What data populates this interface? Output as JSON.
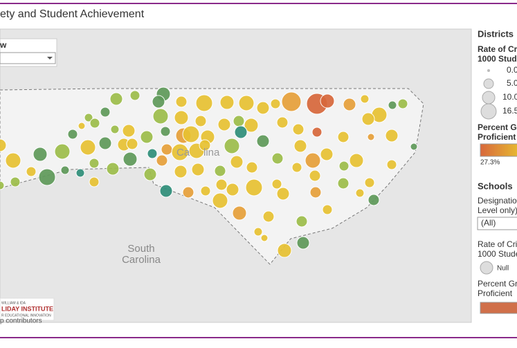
{
  "header": {
    "title": "ety and Student Achievement"
  },
  "filter": {
    "label": "w"
  },
  "map_labels": {
    "nc_left": "Ca",
    "nc_right": "lina",
    "sc_1": "South",
    "sc_2": "Carolina"
  },
  "logo": {
    "line1": "WILLIAM & IDA",
    "line2": "LIDAY INSTITUTE",
    "line3": "R EDUCATIONAL INNOVATION"
  },
  "attribution": "p contributors",
  "districts": {
    "title": "Districts",
    "size_title_1": "Rate of Cri",
    "size_title_2": "1000 Stude",
    "size_labels": [
      "0.0",
      "5.0",
      "10.0",
      "16.5"
    ],
    "color_title_1": "Percent Gr",
    "color_title_2": "Proficient",
    "color_min": "27.3%"
  },
  "schools": {
    "title": "Schools",
    "designation_1": "Designation",
    "designation_2": "Level only)",
    "select": "(All)",
    "size_title_1": "Rate of Cri",
    "size_title_2": "1000 Stude",
    "null_label": "Null",
    "color_title_1": "Percent Gr",
    "color_title_2": "Proficient"
  }
}
